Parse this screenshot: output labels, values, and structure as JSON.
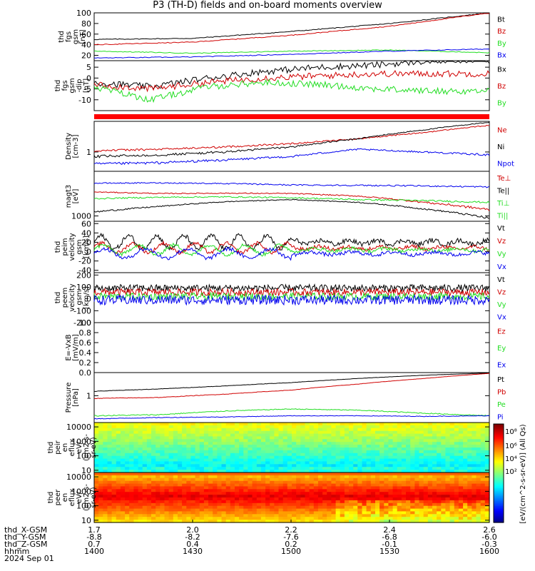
{
  "title": "P3 (TH-D) fields and on-board moments overview",
  "colors": {
    "black": "#000000",
    "red": "#d00000",
    "green": "#22dd22",
    "blue": "#0000ee",
    "bar": "#ff0000"
  },
  "panels": [
    {
      "id": "fgs_gsm",
      "ylabel": [
        "thd",
        "fgs",
        "gsm",
        "[nT]"
      ],
      "ymin": 10,
      "ymax": 100,
      "log": false,
      "ticks": [
        "100",
        "80",
        "60",
        "40",
        "20"
      ],
      "tickvals": [
        100,
        80,
        60,
        40,
        20
      ],
      "legend": [
        {
          "t": "Bt",
          "c": "black"
        },
        {
          "t": "Bz",
          "c": "red"
        },
        {
          "t": "By",
          "c": "green"
        },
        {
          "t": "Bx",
          "c": "blue"
        }
      ]
    },
    {
      "id": "fgs_dsl",
      "ylabel": [
        "thd",
        "fgs",
        "gsm",
        "-dip",
        "[nT]"
      ],
      "ymin": -15,
      "ymax": 8,
      "log": false,
      "ticks": [
        "5",
        "0",
        "-5",
        "-10"
      ],
      "tickvals": [
        5,
        0,
        -5,
        -10
      ],
      "legend": [
        {
          "t": "Bx",
          "c": "black"
        },
        {
          "t": "Bz",
          "c": "red"
        },
        {
          "t": "By",
          "c": "green"
        }
      ]
    },
    {
      "id": "density",
      "ylabel": [
        "Density",
        "[cm-3]"
      ],
      "ymin": 0.5,
      "ymax": 3,
      "log": true,
      "ticks": [
        "1"
      ],
      "tickvals": [
        1
      ],
      "legend": [
        {
          "t": "Ne",
          "c": "red"
        },
        {
          "t": "Ni",
          "c": "black"
        },
        {
          "t": "Npot",
          "c": "blue"
        }
      ]
    },
    {
      "id": "temp",
      "ylabel": [
        "magt3",
        "[eV]"
      ],
      "ymin": 700,
      "ymax": 20000,
      "log": true,
      "ticks": [
        "1000"
      ],
      "tickvals": [
        1000
      ],
      "legend": [
        {
          "t": "Te⊥",
          "c": "red"
        },
        {
          "t": "Te||",
          "c": "black"
        },
        {
          "t": "Ti⊥",
          "c": "green"
        },
        {
          "t": "Ti||",
          "c": "green"
        }
      ]
    },
    {
      "id": "peim_vel",
      "ylabel": [
        "thd",
        "peim",
        "velocity",
        "gsm",
        "[km/s]"
      ],
      "ymin": -45,
      "ymax": 65,
      "log": false,
      "ticks": [
        "60",
        "40",
        "20",
        "0",
        "-20",
        "-40"
      ],
      "tickvals": [
        60,
        40,
        20,
        0,
        -20,
        -40
      ],
      "legend": [
        {
          "t": "Vt",
          "c": "black"
        },
        {
          "t": "Vz",
          "c": "red"
        },
        {
          "t": "Vy",
          "c": "green"
        },
        {
          "t": "Vx",
          "c": "blue"
        }
      ]
    },
    {
      "id": "peem_vel",
      "ylabel": [
        "thd",
        "peem",
        "velocity",
        "gsm",
        "[km/s]"
      ],
      "ymin": -200,
      "ymax": 220,
      "log": false,
      "ticks": [
        "200",
        "100",
        "0",
        "-100",
        "-200"
      ],
      "tickvals": [
        200,
        100,
        0,
        -100,
        -200
      ],
      "legend": [
        {
          "t": "Vt",
          "c": "black"
        },
        {
          "t": "Vz",
          "c": "red"
        },
        {
          "t": "Vy",
          "c": "green"
        },
        {
          "t": "Vx",
          "c": "blue"
        }
      ]
    },
    {
      "id": "efield",
      "ylabel": [
        "E=-VxB",
        "[mV/m]"
      ],
      "ymin": 0,
      "ymax": 1,
      "log": false,
      "ticks": [
        "1.0",
        "0.8",
        "0.6",
        "0.4",
        "0.2",
        "0.0"
      ],
      "tickvals": [
        1,
        0.8,
        0.6,
        0.4,
        0.2,
        0
      ],
      "legend": [
        {
          "t": "Ez",
          "c": "red"
        },
        {
          "t": "Ey",
          "c": "green"
        },
        {
          "t": "Ex",
          "c": "blue"
        }
      ]
    },
    {
      "id": "pressure",
      "ylabel": [
        "Pressure",
        "[nPa]"
      ],
      "ymin": 0.2,
      "ymax": 4,
      "log": true,
      "ticks": [
        "1"
      ],
      "tickvals": [
        1
      ],
      "legend": [
        {
          "t": "Pt",
          "c": "black"
        },
        {
          "t": "Pb",
          "c": "red"
        },
        {
          "t": "Pe",
          "c": "green"
        },
        {
          "t": "Pi",
          "c": "blue"
        }
      ]
    },
    {
      "id": "peir",
      "ylabel": [
        "thd",
        "peir",
        "en",
        "eflux",
        "eV/",
        "(cm2-s-",
        "sr-eV)"
      ],
      "ymin": 7,
      "ymax": 20000,
      "log": true,
      "ticks": [
        "10000",
        "1000",
        "100",
        "10"
      ],
      "tickvals": [
        10000,
        1000,
        100,
        10
      ],
      "legend": []
    },
    {
      "id": "peer",
      "ylabel": [
        "thd",
        "peer",
        "en",
        "eflux",
        "eV/",
        "(cm2-s-",
        "sr-eV)"
      ],
      "ymin": 7,
      "ymax": 20000,
      "log": true,
      "ticks": [
        "10000",
        "1000",
        "100",
        "10"
      ],
      "tickvals": [
        10000,
        1000,
        100,
        10
      ],
      "legend": []
    }
  ],
  "colorbar": {
    "ticks": [
      "10⁸",
      "10⁶",
      "10⁴",
      "10²"
    ],
    "label": "[eV/(cm^2-s-sr-eV)] (All Qs)"
  },
  "footer": {
    "rows": [
      {
        "label": "thd_X-GSM",
        "values": [
          "1.7",
          "2.0",
          "2.2",
          "2.4",
          "2.6"
        ]
      },
      {
        "label": "thd_Y-GSM",
        "values": [
          "-8.8",
          "-8.2",
          "-7.6",
          "-6.8",
          "-6.0"
        ]
      },
      {
        "label": "thd_Z-GSM",
        "values": [
          "0.7",
          "0.4",
          "0.2",
          "-0.1",
          "-0.3"
        ]
      },
      {
        "label": "hhmm",
        "values": [
          "1400",
          "1430",
          "1500",
          "1530",
          "1600"
        ]
      }
    ],
    "date": "2024 Sep 01"
  },
  "chart_data": {
    "type": "line",
    "x": [
      "1400",
      "1430",
      "1500",
      "1530",
      "1600"
    ],
    "series": [
      {
        "name": "Bt",
        "values": [
          50,
          52,
          65,
          80,
          100
        ]
      },
      {
        "name": "Bz",
        "values": [
          40,
          45,
          58,
          75,
          100
        ]
      },
      {
        "name": "By",
        "values": [
          28,
          24,
          28,
          30,
          25
        ]
      },
      {
        "name": "Bx",
        "values": [
          15,
          17,
          22,
          28,
          32
        ]
      }
    ]
  }
}
